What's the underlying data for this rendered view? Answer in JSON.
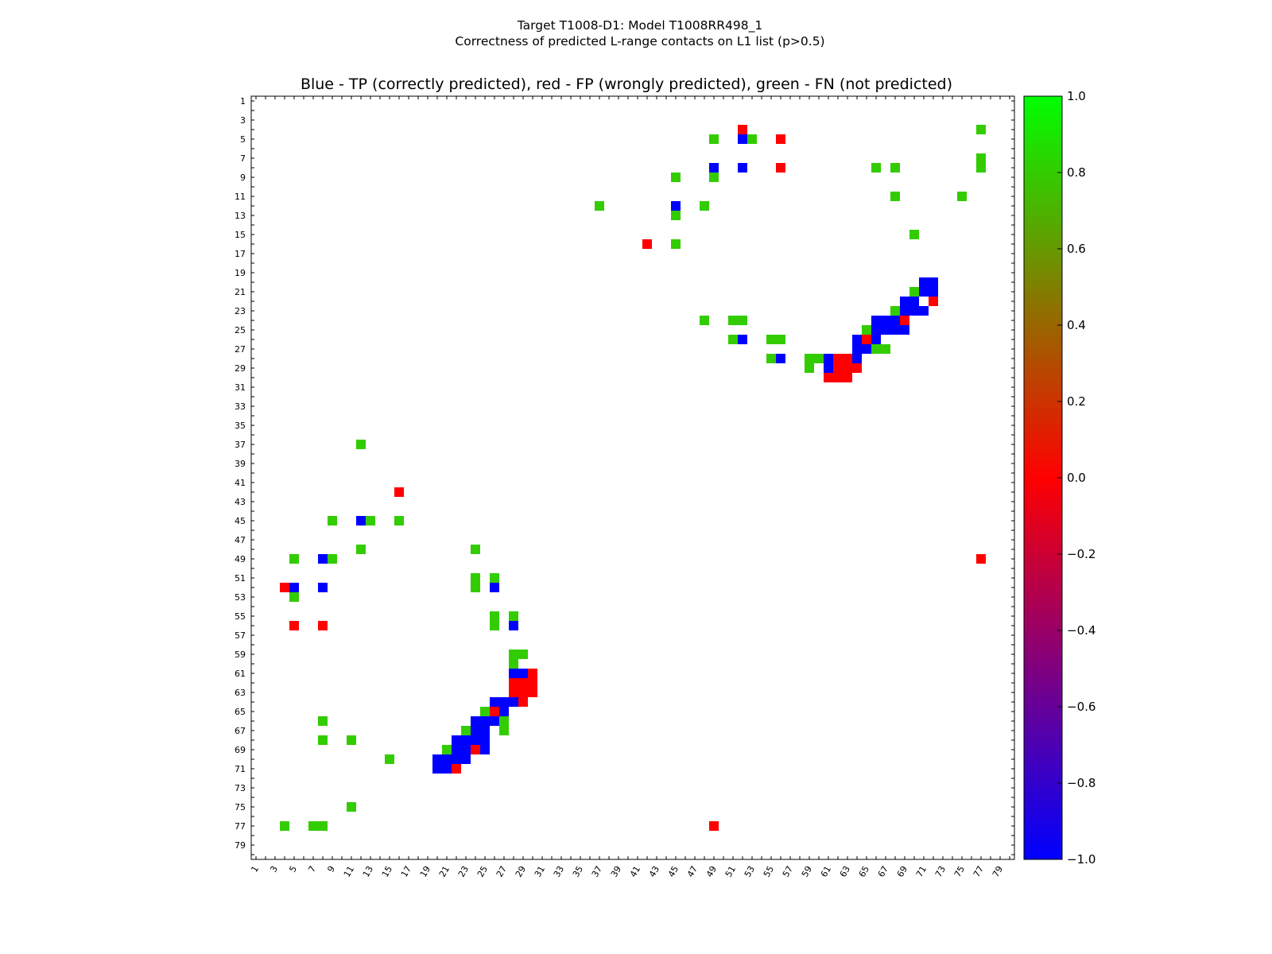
{
  "chart_data": {
    "type": "heatmap",
    "title_line1": "Target T1008-D1: Model T1008RR498_1",
    "title_line2": "Correctness of predicted L-range contacts on L1 list (p>0.5)",
    "subtitle": "Blue - TP (correctly predicted), red - FP (wrongly predicted), green - FN (not predicted)",
    "xlabel": "",
    "ylabel": "",
    "residue_range": [
      1,
      80
    ],
    "x_tick_labels": [
      "1",
      "3",
      "5",
      "7",
      "9",
      "11",
      "13",
      "15",
      "17",
      "19",
      "21",
      "23",
      "25",
      "27",
      "29",
      "31",
      "33",
      "35",
      "37",
      "39",
      "41",
      "43",
      "45",
      "47",
      "49",
      "51",
      "53",
      "55",
      "57",
      "59",
      "61",
      "63",
      "65",
      "67",
      "69",
      "71",
      "73",
      "75",
      "77",
      "79"
    ],
    "y_tick_labels": [
      "1",
      "3",
      "5",
      "7",
      "9",
      "11",
      "13",
      "15",
      "17",
      "19",
      "21",
      "23",
      "25",
      "27",
      "29",
      "31",
      "33",
      "35",
      "37",
      "39",
      "41",
      "43",
      "45",
      "47",
      "49",
      "51",
      "53",
      "55",
      "57",
      "59",
      "61",
      "63",
      "65",
      "67",
      "69",
      "71",
      "73",
      "75",
      "77",
      "79"
    ],
    "colorbar": {
      "range": [
        -1.0,
        1.0
      ],
      "tick_labels": [
        "1.0",
        "0.8",
        "0.6",
        "0.4",
        "0.2",
        "0.0",
        "−0.2",
        "−0.4",
        "−0.6",
        "−0.8",
        "−1.0"
      ],
      "stops": [
        "#0000ff",
        "#ff0000",
        "#00ff00"
      ]
    },
    "colors": {
      "TP": "#0000ff",
      "FP": "#ff0000",
      "FN": "#33cc00"
    },
    "legend": {
      "TP": "correctly predicted",
      "FP": "wrongly predicted",
      "FN": "not predicted"
    },
    "cells": [
      {
        "i": 4,
        "j": 52,
        "t": "FP"
      },
      {
        "i": 5,
        "j": 52,
        "t": "TP"
      },
      {
        "i": 5,
        "j": 53,
        "t": "FN"
      },
      {
        "i": 5,
        "j": 49,
        "t": "FN"
      },
      {
        "i": 5,
        "j": 56,
        "t": "FP"
      },
      {
        "i": 4,
        "j": 77,
        "t": "FN"
      },
      {
        "i": 8,
        "j": 49,
        "t": "TP"
      },
      {
        "i": 8,
        "j": 52,
        "t": "TP"
      },
      {
        "i": 8,
        "j": 56,
        "t": "FP"
      },
      {
        "i": 8,
        "j": 66,
        "t": "FN"
      },
      {
        "i": 8,
        "j": 68,
        "t": "FN"
      },
      {
        "i": 7,
        "j": 77,
        "t": "FN"
      },
      {
        "i": 8,
        "j": 77,
        "t": "FN"
      },
      {
        "i": 9,
        "j": 45,
        "t": "FN"
      },
      {
        "i": 9,
        "j": 49,
        "t": "FN"
      },
      {
        "i": 11,
        "j": 68,
        "t": "FN"
      },
      {
        "i": 11,
        "j": 75,
        "t": "FN"
      },
      {
        "i": 12,
        "j": 37,
        "t": "FN"
      },
      {
        "i": 12,
        "j": 45,
        "t": "TP"
      },
      {
        "i": 12,
        "j": 48,
        "t": "FN"
      },
      {
        "i": 13,
        "j": 45,
        "t": "FN"
      },
      {
        "i": 15,
        "j": 70,
        "t": "FN"
      },
      {
        "i": 16,
        "j": 42,
        "t": "FP"
      },
      {
        "i": 16,
        "j": 45,
        "t": "FN"
      },
      {
        "i": 20,
        "j": 71,
        "t": "TP"
      },
      {
        "i": 20,
        "j": 72,
        "t": "TP"
      },
      {
        "i": 21,
        "j": 70,
        "t": "FN"
      },
      {
        "i": 21,
        "j": 71,
        "t": "TP"
      },
      {
        "i": 21,
        "j": 72,
        "t": "TP"
      },
      {
        "i": 22,
        "j": 69,
        "t": "TP"
      },
      {
        "i": 22,
        "j": 70,
        "t": "TP"
      },
      {
        "i": 22,
        "j": 72,
        "t": "FP"
      },
      {
        "i": 23,
        "j": 68,
        "t": "FN"
      },
      {
        "i": 23,
        "j": 69,
        "t": "TP"
      },
      {
        "i": 23,
        "j": 70,
        "t": "TP"
      },
      {
        "i": 23,
        "j": 71,
        "t": "TP"
      },
      {
        "i": 24,
        "j": 48,
        "t": "FN"
      },
      {
        "i": 24,
        "j": 51,
        "t": "FN"
      },
      {
        "i": 24,
        "j": 52,
        "t": "FN"
      },
      {
        "i": 24,
        "j": 66,
        "t": "TP"
      },
      {
        "i": 24,
        "j": 67,
        "t": "TP"
      },
      {
        "i": 24,
        "j": 68,
        "t": "TP"
      },
      {
        "i": 24,
        "j": 69,
        "t": "FP"
      },
      {
        "i": 25,
        "j": 65,
        "t": "FN"
      },
      {
        "i": 25,
        "j": 66,
        "t": "TP"
      },
      {
        "i": 25,
        "j": 67,
        "t": "TP"
      },
      {
        "i": 25,
        "j": 68,
        "t": "TP"
      },
      {
        "i": 25,
        "j": 69,
        "t": "TP"
      },
      {
        "i": 26,
        "j": 51,
        "t": "FN"
      },
      {
        "i": 26,
        "j": 52,
        "t": "TP"
      },
      {
        "i": 26,
        "j": 55,
        "t": "FN"
      },
      {
        "i": 26,
        "j": 56,
        "t": "FN"
      },
      {
        "i": 26,
        "j": 64,
        "t": "TP"
      },
      {
        "i": 26,
        "j": 65,
        "t": "FP"
      },
      {
        "i": 26,
        "j": 66,
        "t": "TP"
      },
      {
        "i": 27,
        "j": 64,
        "t": "TP"
      },
      {
        "i": 27,
        "j": 65,
        "t": "TP"
      },
      {
        "i": 27,
        "j": 66,
        "t": "FN"
      },
      {
        "i": 27,
        "j": 67,
        "t": "FN"
      },
      {
        "i": 28,
        "j": 55,
        "t": "FN"
      },
      {
        "i": 28,
        "j": 56,
        "t": "TP"
      },
      {
        "i": 28,
        "j": 59,
        "t": "FN"
      },
      {
        "i": 28,
        "j": 60,
        "t": "FN"
      },
      {
        "i": 28,
        "j": 61,
        "t": "TP"
      },
      {
        "i": 28,
        "j": 62,
        "t": "FP"
      },
      {
        "i": 28,
        "j": 63,
        "t": "FP"
      },
      {
        "i": 28,
        "j": 64,
        "t": "TP"
      },
      {
        "i": 29,
        "j": 59,
        "t": "FN"
      },
      {
        "i": 29,
        "j": 61,
        "t": "TP"
      },
      {
        "i": 29,
        "j": 62,
        "t": "FP"
      },
      {
        "i": 29,
        "j": 63,
        "t": "FP"
      },
      {
        "i": 29,
        "j": 64,
        "t": "FP"
      },
      {
        "i": 30,
        "j": 61,
        "t": "FP"
      },
      {
        "i": 30,
        "j": 62,
        "t": "FP"
      },
      {
        "i": 30,
        "j": 63,
        "t": "FP"
      },
      {
        "i": 37,
        "j": 12,
        "t": "FN"
      },
      {
        "i": 42,
        "j": 16,
        "t": "FP"
      },
      {
        "i": 45,
        "j": 9,
        "t": "FN"
      },
      {
        "i": 45,
        "j": 12,
        "t": "TP"
      },
      {
        "i": 45,
        "j": 13,
        "t": "FN"
      },
      {
        "i": 45,
        "j": 16,
        "t": "FN"
      },
      {
        "i": 48,
        "j": 12,
        "t": "FN"
      },
      {
        "i": 48,
        "j": 24,
        "t": "FN"
      },
      {
        "i": 49,
        "j": 5,
        "t": "FN"
      },
      {
        "i": 49,
        "j": 8,
        "t": "TP"
      },
      {
        "i": 49,
        "j": 9,
        "t": "FN"
      },
      {
        "i": 49,
        "j": 77,
        "t": "FP"
      },
      {
        "i": 51,
        "j": 24,
        "t": "FN"
      },
      {
        "i": 51,
        "j": 26,
        "t": "FN"
      },
      {
        "i": 52,
        "j": 4,
        "t": "FP"
      },
      {
        "i": 52,
        "j": 5,
        "t": "TP"
      },
      {
        "i": 52,
        "j": 8,
        "t": "TP"
      },
      {
        "i": 52,
        "j": 24,
        "t": "FN"
      },
      {
        "i": 52,
        "j": 26,
        "t": "TP"
      },
      {
        "i": 53,
        "j": 5,
        "t": "FN"
      },
      {
        "i": 55,
        "j": 26,
        "t": "FN"
      },
      {
        "i": 55,
        "j": 28,
        "t": "FN"
      },
      {
        "i": 56,
        "j": 5,
        "t": "FP"
      },
      {
        "i": 56,
        "j": 8,
        "t": "FP"
      },
      {
        "i": 56,
        "j": 26,
        "t": "FN"
      },
      {
        "i": 56,
        "j": 28,
        "t": "TP"
      },
      {
        "i": 59,
        "j": 28,
        "t": "FN"
      },
      {
        "i": 59,
        "j": 29,
        "t": "FN"
      },
      {
        "i": 60,
        "j": 28,
        "t": "FN"
      },
      {
        "i": 61,
        "j": 28,
        "t": "TP"
      },
      {
        "i": 61,
        "j": 29,
        "t": "TP"
      },
      {
        "i": 61,
        "j": 30,
        "t": "FP"
      },
      {
        "i": 62,
        "j": 28,
        "t": "FP"
      },
      {
        "i": 62,
        "j": 29,
        "t": "FP"
      },
      {
        "i": 62,
        "j": 30,
        "t": "FP"
      },
      {
        "i": 63,
        "j": 28,
        "t": "FP"
      },
      {
        "i": 63,
        "j": 29,
        "t": "FP"
      },
      {
        "i": 63,
        "j": 30,
        "t": "FP"
      },
      {
        "i": 64,
        "j": 26,
        "t": "TP"
      },
      {
        "i": 64,
        "j": 27,
        "t": "TP"
      },
      {
        "i": 64,
        "j": 28,
        "t": "TP"
      },
      {
        "i": 64,
        "j": 29,
        "t": "FP"
      },
      {
        "i": 65,
        "j": 25,
        "t": "FN"
      },
      {
        "i": 65,
        "j": 26,
        "t": "FP"
      },
      {
        "i": 65,
        "j": 27,
        "t": "TP"
      },
      {
        "i": 66,
        "j": 8,
        "t": "FN"
      },
      {
        "i": 66,
        "j": 24,
        "t": "TP"
      },
      {
        "i": 66,
        "j": 25,
        "t": "TP"
      },
      {
        "i": 66,
        "j": 26,
        "t": "TP"
      },
      {
        "i": 66,
        "j": 27,
        "t": "FN"
      },
      {
        "i": 67,
        "j": 23,
        "t": "FN"
      },
      {
        "i": 67,
        "j": 24,
        "t": "TP"
      },
      {
        "i": 67,
        "j": 25,
        "t": "TP"
      },
      {
        "i": 67,
        "j": 27,
        "t": "FN"
      },
      {
        "i": 68,
        "j": 8,
        "t": "FN"
      },
      {
        "i": 68,
        "j": 11,
        "t": "FN"
      },
      {
        "i": 68,
        "j": 22,
        "t": "TP"
      },
      {
        "i": 68,
        "j": 23,
        "t": "TP"
      },
      {
        "i": 68,
        "j": 24,
        "t": "TP"
      },
      {
        "i": 68,
        "j": 25,
        "t": "TP"
      },
      {
        "i": 69,
        "j": 21,
        "t": "FN"
      },
      {
        "i": 69,
        "j": 22,
        "t": "TP"
      },
      {
        "i": 69,
        "j": 23,
        "t": "TP"
      },
      {
        "i": 69,
        "j": 24,
        "t": "FP"
      },
      {
        "i": 69,
        "j": 25,
        "t": "TP"
      },
      {
        "i": 70,
        "j": 15,
        "t": "FN"
      },
      {
        "i": 70,
        "j": 20,
        "t": "TP"
      },
      {
        "i": 70,
        "j": 21,
        "t": "TP"
      },
      {
        "i": 70,
        "j": 22,
        "t": "TP"
      },
      {
        "i": 70,
        "j": 23,
        "t": "TP"
      },
      {
        "i": 71,
        "j": 20,
        "t": "TP"
      },
      {
        "i": 71,
        "j": 21,
        "t": "TP"
      },
      {
        "i": 71,
        "j": 22,
        "t": "FP"
      },
      {
        "i": 75,
        "j": 11,
        "t": "FN"
      },
      {
        "i": 77,
        "j": 4,
        "t": "FN"
      },
      {
        "i": 77,
        "j": 7,
        "t": "FN"
      },
      {
        "i": 77,
        "j": 8,
        "t": "FN"
      },
      {
        "i": 77,
        "j": 49,
        "t": "FP"
      }
    ]
  }
}
